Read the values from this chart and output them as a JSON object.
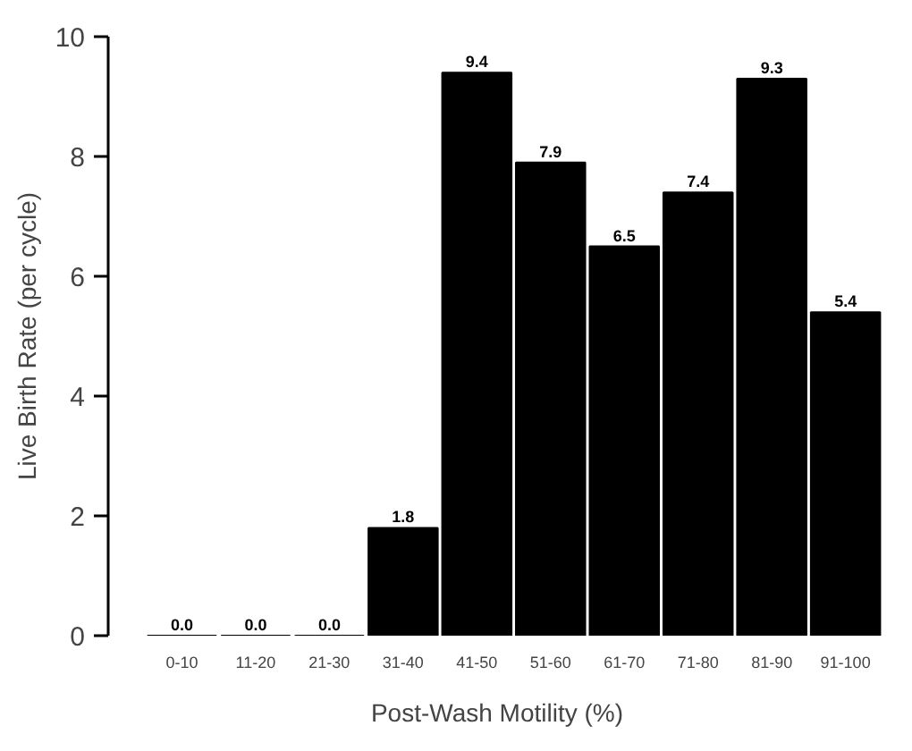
{
  "chart_data": {
    "type": "bar",
    "xlabel": "Post-Wash Motility (%)",
    "ylabel": "Live Birth Rate (per cycle)",
    "categories": [
      "0-10",
      "11-20",
      "21-30",
      "31-40",
      "41-50",
      "51-60",
      "61-70",
      "71-80",
      "81-90",
      "91-100"
    ],
    "values": [
      0.0,
      0.0,
      0.0,
      1.8,
      9.4,
      7.9,
      6.5,
      7.4,
      9.3,
      5.4
    ],
    "value_labels": [
      "0.0",
      "0.0",
      "0.0",
      "1.8",
      "9.4",
      "7.9",
      "6.5",
      "7.4",
      "9.3",
      "5.4"
    ],
    "color": "#000000",
    "ylim": [
      0,
      10
    ],
    "yticks": [
      0,
      2,
      4,
      6,
      8,
      10
    ],
    "grid": false
  }
}
